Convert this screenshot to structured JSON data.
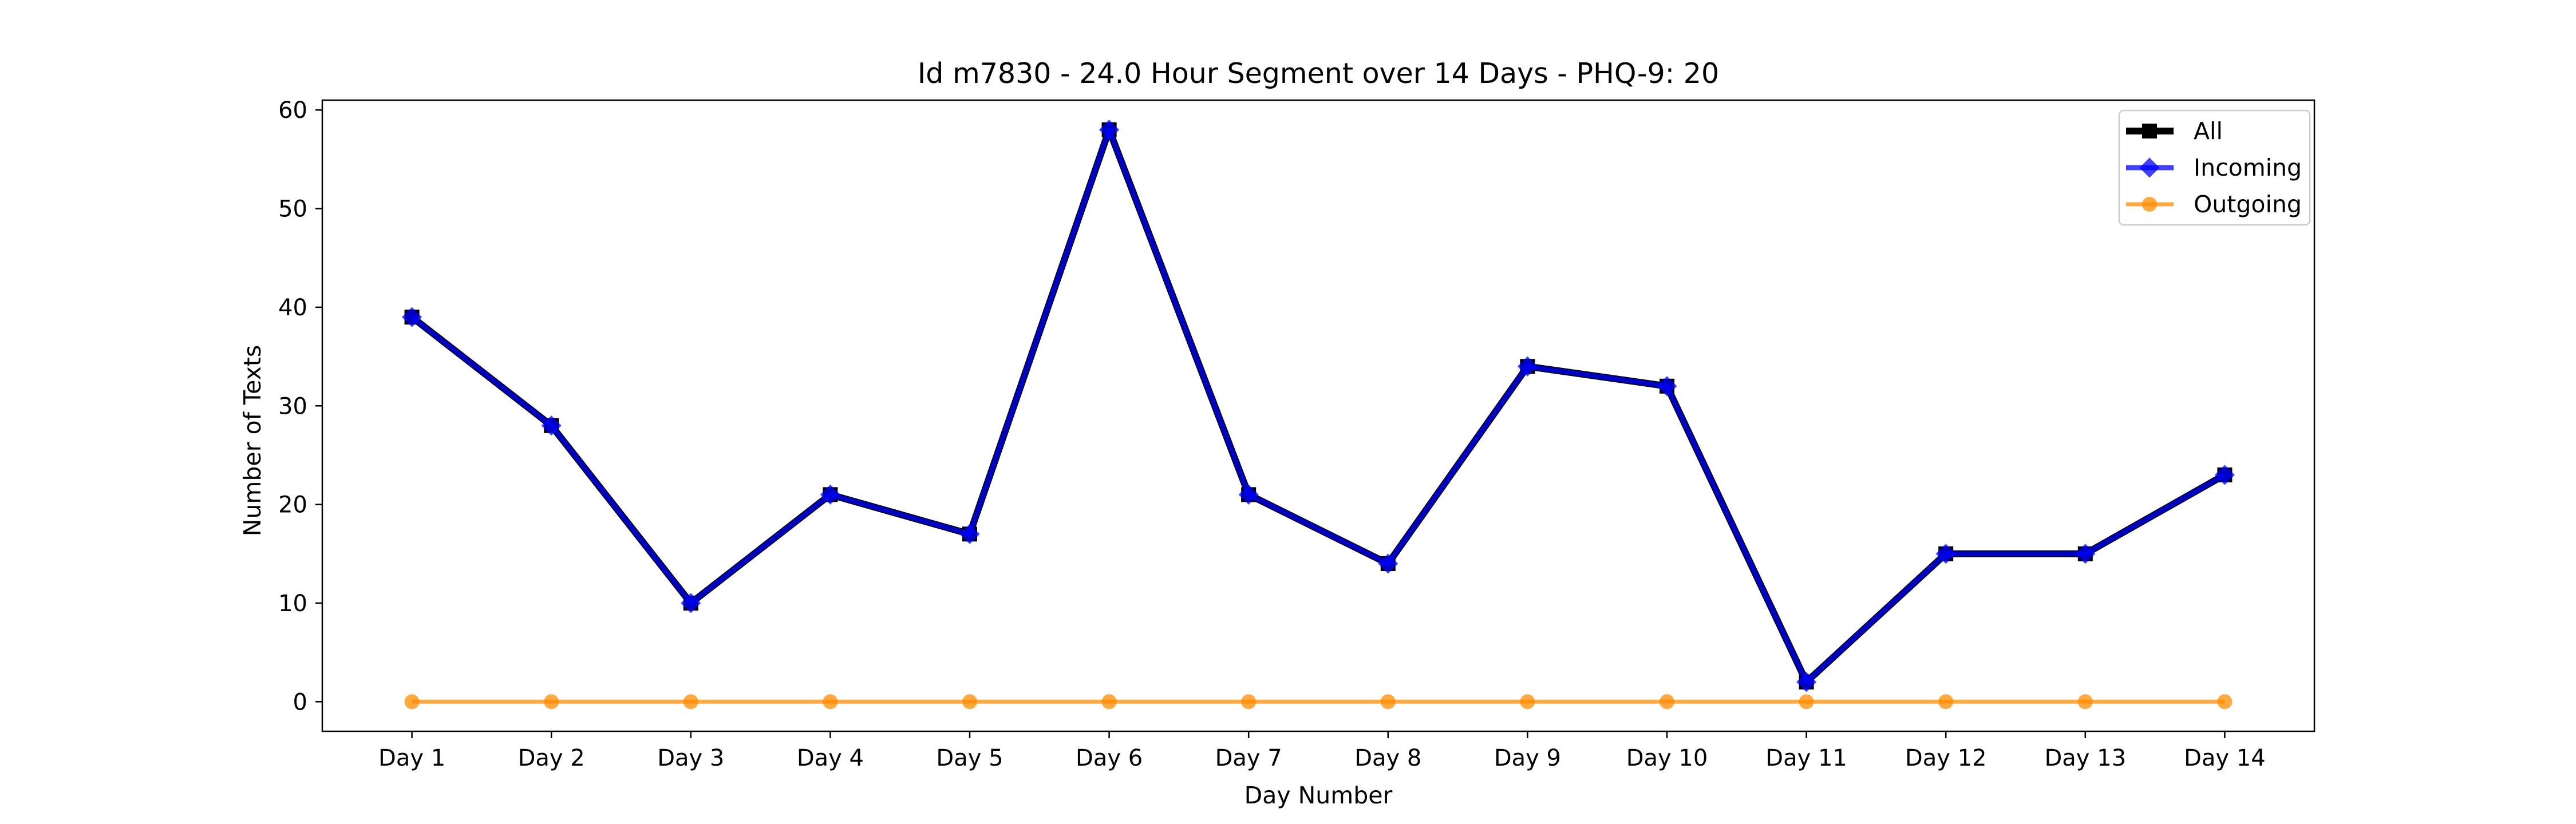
{
  "chart_data": {
    "type": "line",
    "title": "Id m7830 - 24.0 Hour Segment over 14 Days - PHQ-9: 20",
    "xlabel": "Day Number",
    "ylabel": "Number of Texts",
    "categories": [
      "Day 1",
      "Day 2",
      "Day 3",
      "Day 4",
      "Day 5",
      "Day 6",
      "Day 7",
      "Day 8",
      "Day 9",
      "Day 10",
      "Day 11",
      "Day 12",
      "Day 13",
      "Day 14"
    ],
    "ylim": [
      -3,
      61
    ],
    "yticks": [
      0,
      10,
      20,
      30,
      40,
      50,
      60
    ],
    "grid": false,
    "legend_position": "top-right",
    "series": [
      {
        "name": "All",
        "color": "#000000",
        "marker": "square",
        "values": [
          39,
          28,
          10,
          21,
          17,
          58,
          21,
          14,
          34,
          32,
          2,
          15,
          15,
          23
        ]
      },
      {
        "name": "Incoming",
        "color": "#0000ff",
        "marker": "diamond",
        "values": [
          39,
          28,
          10,
          21,
          17,
          58,
          21,
          14,
          34,
          32,
          2,
          15,
          15,
          23
        ]
      },
      {
        "name": "Outgoing",
        "color": "#ff8c00",
        "marker": "circle",
        "values": [
          0,
          0,
          0,
          0,
          0,
          0,
          0,
          0,
          0,
          0,
          0,
          0,
          0,
          0
        ]
      }
    ]
  }
}
